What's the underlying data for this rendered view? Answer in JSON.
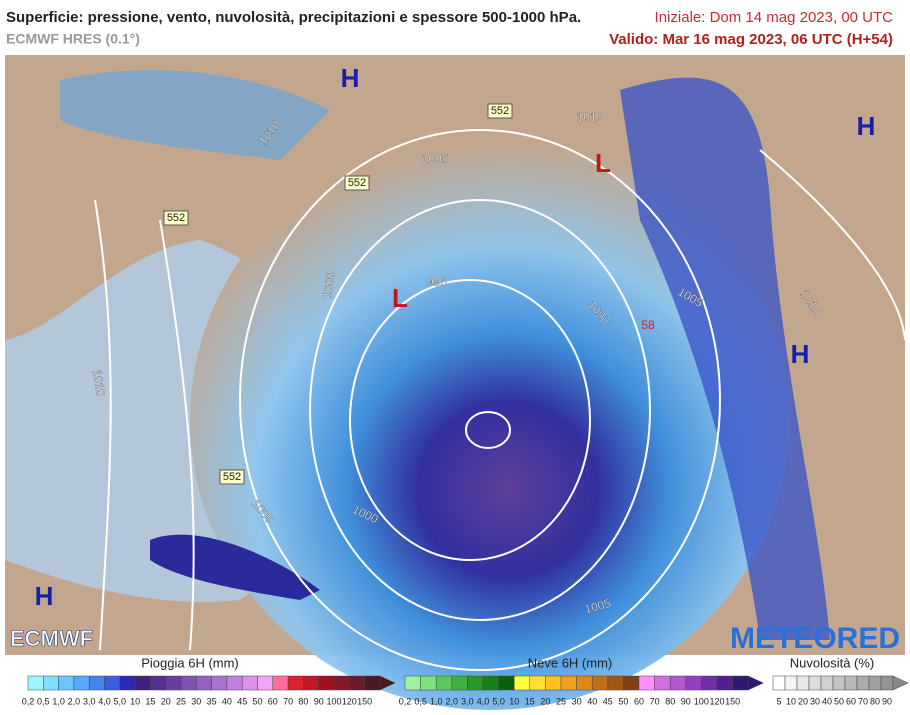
{
  "header": {
    "title": "Superficie: pressione, vento, nuvolosità, precipitazioni e spessore 500-1000 hPa.",
    "model": "ECMWF HRES (0.1°)",
    "initial": "Iniziale: Dom 14 mag 2023, 00 UTC",
    "valid": "Valido: Mar 16 mag 2023, 06 UTC (H+54)"
  },
  "map": {
    "labels": [
      "H",
      "H",
      "H",
      "H",
      "L",
      "L",
      "1010",
      "1010",
      "1005",
      "1000",
      "995",
      "1000",
      "1005",
      "1010",
      "1010",
      "1005",
      "1000",
      "1005",
      "58",
      "552",
      "552",
      "552",
      "552"
    ],
    "logos": [
      "ECMWF",
      "METEORED"
    ]
  },
  "legends": [
    {
      "title": "Pioggia 6H (mm)",
      "labels": [
        "0,2",
        "0,5",
        "1,0",
        "2,0",
        "3,0",
        "4,0",
        "5,0",
        "10",
        "15",
        "20",
        "25",
        "30",
        "35",
        "40",
        "45",
        "50",
        "60",
        "70",
        "80",
        "90",
        "100",
        "120",
        "150"
      ]
    },
    {
      "title": "Neve 6H (mm)",
      "labels": [
        "0,2",
        "0,5",
        "1,0",
        "2,0",
        "3,0",
        "4,0",
        "5,0",
        "10",
        "15",
        "20",
        "25",
        "30",
        "40",
        "45",
        "50",
        "60",
        "70",
        "80",
        "90",
        "100",
        "120",
        "150"
      ]
    },
    {
      "title": "Nuvolosità (%)",
      "labels": [
        "5",
        "10",
        "20",
        "30",
        "40",
        "50",
        "60",
        "70",
        "80",
        "90"
      ]
    }
  ]
}
